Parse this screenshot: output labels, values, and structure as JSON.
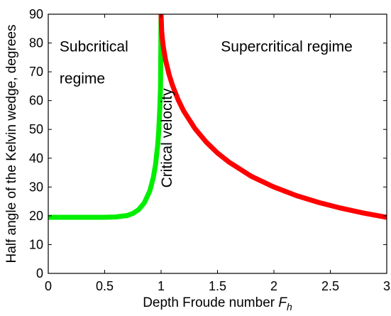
{
  "chart_data": {
    "type": "line",
    "title": "",
    "xlabel": "Depth Froude number",
    "xlabel_symbol": "F",
    "xlabel_subscript": "h",
    "ylabel": "Half angle of the Kelvin wedge, degrees",
    "xlim": [
      0,
      3
    ],
    "ylim": [
      0,
      90
    ],
    "x_ticks": [
      "0",
      "0.5",
      "1",
      "1.5",
      "2",
      "2.5",
      "3"
    ],
    "y_ticks": [
      "0",
      "10",
      "20",
      "30",
      "40",
      "50",
      "60",
      "70",
      "80",
      "90"
    ],
    "grid": false,
    "series": [
      {
        "color": "#00ee00",
        "points": [
          [
            0,
            19.47
          ],
          [
            0.3,
            19.47
          ],
          [
            0.5,
            19.48
          ],
          [
            0.6,
            19.6
          ],
          [
            0.7,
            20.1
          ],
          [
            0.75,
            20.8
          ],
          [
            0.8,
            22.1
          ],
          [
            0.85,
            24.4
          ],
          [
            0.9,
            28.6
          ],
          [
            0.93,
            33.1
          ],
          [
            0.95,
            37.5
          ],
          [
            0.97,
            44.5
          ],
          [
            0.98,
            50.0
          ],
          [
            0.99,
            58.5
          ],
          [
            0.995,
            65.0
          ],
          [
            1.0,
            90
          ]
        ]
      },
      {
        "color": "#ff0000",
        "points": [
          [
            1.0,
            90
          ],
          [
            1.005,
            84.3
          ],
          [
            1.01,
            81.9
          ],
          [
            1.02,
            78.6
          ],
          [
            1.04,
            74.0
          ],
          [
            1.07,
            69.2
          ],
          [
            1.1,
            65.4
          ],
          [
            1.15,
            60.4
          ],
          [
            1.2,
            56.4
          ],
          [
            1.3,
            50.3
          ],
          [
            1.4,
            45.6
          ],
          [
            1.5,
            41.8
          ],
          [
            1.6,
            38.7
          ],
          [
            1.8,
            33.7
          ],
          [
            2.0,
            30.0
          ],
          [
            2.2,
            27.0
          ],
          [
            2.4,
            24.6
          ],
          [
            2.6,
            22.6
          ],
          [
            2.8,
            20.9
          ],
          [
            3.0,
            19.47
          ]
        ]
      }
    ],
    "annotations": [
      {
        "text": "Subcritical",
        "x": 0.1,
        "y": 77
      },
      {
        "text": "regime",
        "x": 0.1,
        "y": 66
      },
      {
        "text": "Supercritical regime",
        "x": 1.53,
        "y": 77
      },
      {
        "text": "Critical velocity",
        "x": 1.095,
        "y": 47,
        "rotate": -90
      }
    ]
  }
}
